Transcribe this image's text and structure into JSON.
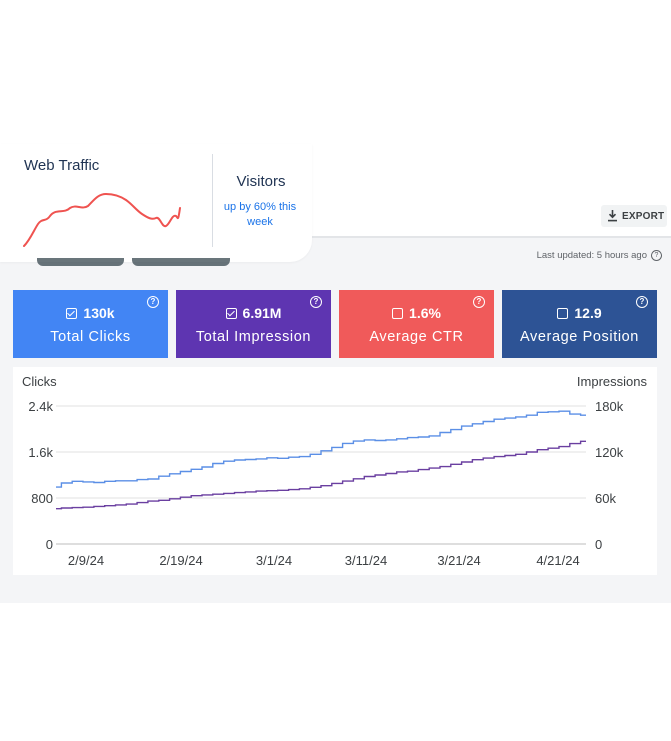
{
  "web_traffic": {
    "title": "Web Traffic",
    "sparkline_color": "#ef5350"
  },
  "visitors": {
    "title": "Visitors",
    "subtitle": "up by 60% this week"
  },
  "export": {
    "label": "EXPORT",
    "icon": "download-icon"
  },
  "last_updated": {
    "text": "Last updated: 5 hours ago",
    "icon": "help-circle-icon"
  },
  "metrics": [
    {
      "value": "130k",
      "label": "Total Clicks",
      "checked": true,
      "color": "#4285f4"
    },
    {
      "value": "6.91M",
      "label": "Total Impression",
      "checked": true,
      "color": "#5e35b1"
    },
    {
      "value": "1.6%",
      "label": "Average CTR",
      "checked": false,
      "color": "#f05a5a"
    },
    {
      "value": "12.9",
      "label": "Average Position",
      "checked": false,
      "color": "#2d5395"
    }
  ],
  "chart_data": {
    "type": "line",
    "left_axis_title": "Clicks",
    "right_axis_title": "Impressions",
    "left_ticks": [
      "0",
      "800",
      "1.6k",
      "2.4k"
    ],
    "right_ticks": [
      "0",
      "60k",
      "120k",
      "180k"
    ],
    "ylim_left": [
      0,
      2400
    ],
    "ylim_right": [
      0,
      180000
    ],
    "x_ticks": [
      "2/9/24",
      "2/19/24",
      "3/1/24",
      "3/11/24",
      "3/21/24",
      "4/21/24"
    ],
    "grid": true,
    "series": [
      {
        "name": "Clicks",
        "axis": "left",
        "color": "#5b8fe6",
        "values": [
          990,
          1060,
          1090,
          1080,
          1070,
          1090,
          1100,
          1100,
          1120,
          1130,
          1180,
          1220,
          1260,
          1300,
          1340,
          1400,
          1440,
          1460,
          1470,
          1480,
          1500,
          1490,
          1510,
          1520,
          1560,
          1620,
          1680,
          1750,
          1790,
          1810,
          1800,
          1810,
          1830,
          1850,
          1860,
          1880,
          1940,
          1990,
          2050,
          2090,
          2130,
          2170,
          2190,
          2210,
          2240,
          2290,
          2300,
          2310,
          2260,
          2240
        ]
      },
      {
        "name": "Impressions",
        "axis": "right",
        "color": "#6a3fa0",
        "values": [
          46000,
          47000,
          47500,
          48000,
          49000,
          50000,
          51000,
          52000,
          54000,
          56000,
          57000,
          59000,
          61000,
          63000,
          64000,
          65000,
          66000,
          67000,
          68000,
          69000,
          69500,
          70000,
          71000,
          72000,
          74000,
          76000,
          79000,
          82000,
          85000,
          88000,
          90000,
          92000,
          94000,
          95000,
          97000,
          99000,
          101000,
          104000,
          107000,
          110000,
          112000,
          114000,
          115500,
          117000,
          120000,
          123000,
          125000,
          127000,
          131000,
          134000
        ]
      }
    ]
  }
}
